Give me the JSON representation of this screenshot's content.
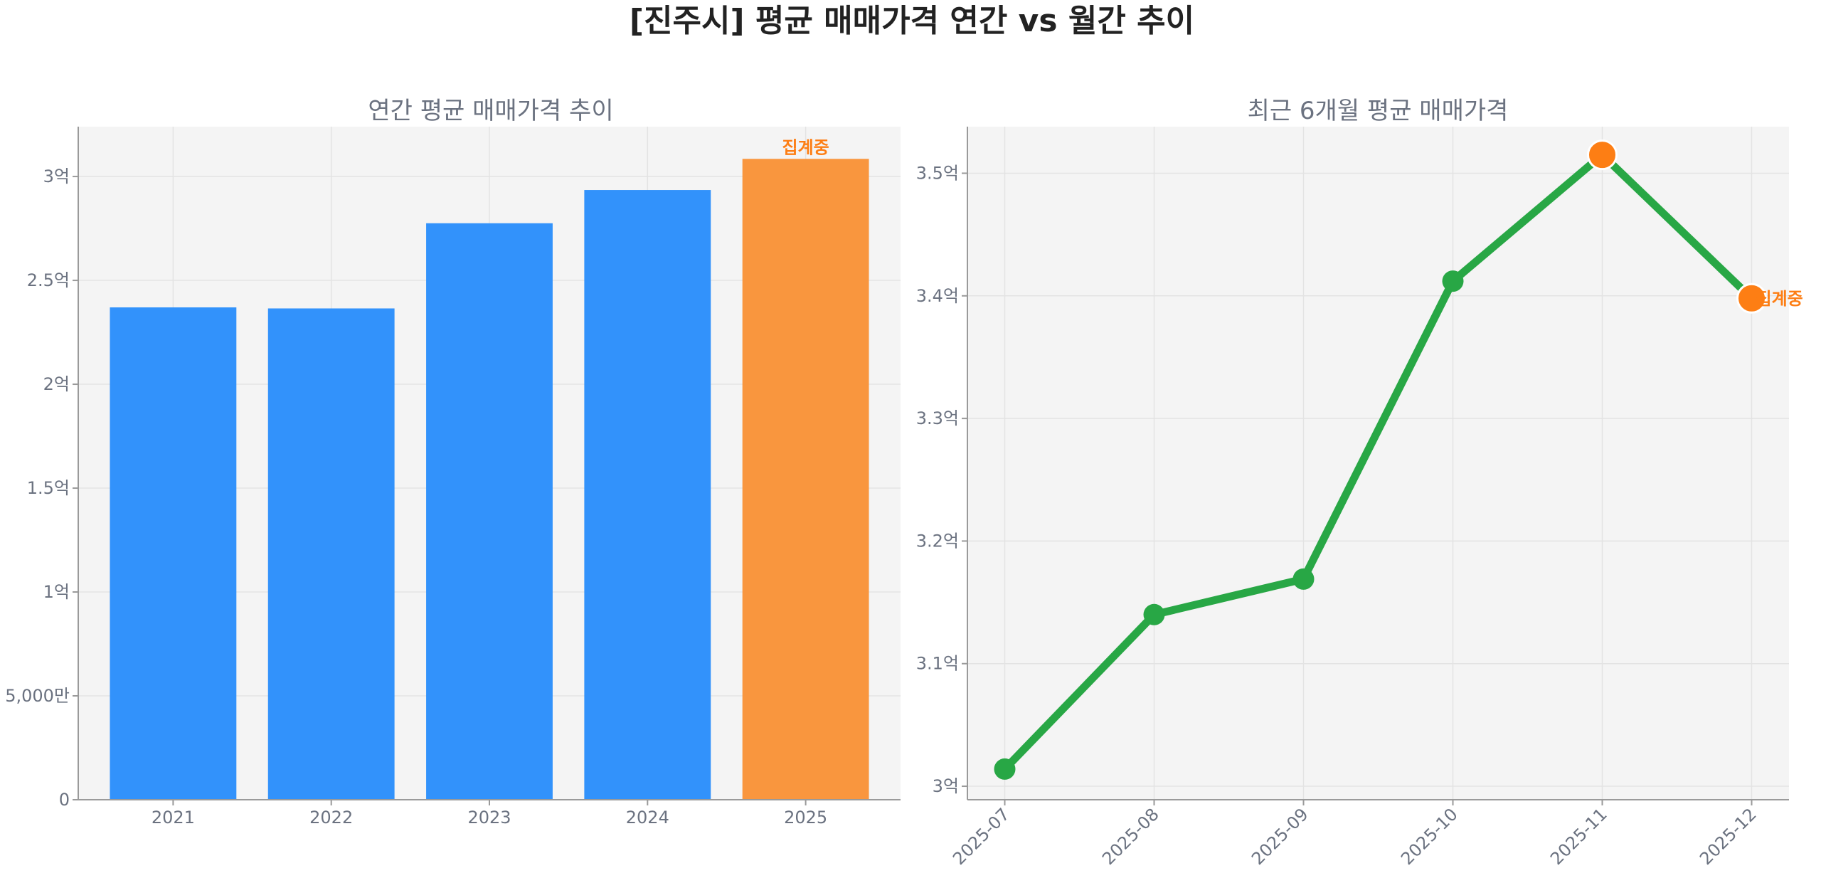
{
  "title": "[진주시] 평균 매매가격 연간 vs 월간 추이",
  "colors": {
    "bar": "#3292fb",
    "highlight_bar": "#f9963e",
    "line": "#28a745",
    "highlight_marker": "#fd7e14",
    "annotation": "#fd7e14"
  },
  "chart_data": [
    {
      "type": "bar",
      "title": "연간 평균 매매가격 추이",
      "categories": [
        "2021",
        "2022",
        "2023",
        "2024",
        "2025"
      ],
      "values": [
        237000000,
        236500000,
        277500000,
        293500000,
        308500000
      ],
      "highlight_index": 4,
      "annotation": "집계중",
      "ylim": [
        0,
        324000000
      ],
      "yticks": [
        0,
        50000000,
        100000000,
        150000000,
        200000000,
        250000000,
        300000000
      ],
      "ytick_labels": [
        "0",
        "5,000만",
        "1억",
        "1.5억",
        "2억",
        "2.5억",
        "3억"
      ],
      "grid": true
    },
    {
      "type": "line",
      "title": "최근 6개월 평균 매매가격",
      "categories": [
        "2025-07",
        "2025-08",
        "2025-09",
        "2025-10",
        "2025-11",
        "2025-12"
      ],
      "values": [
        301400000,
        314000000,
        316900000,
        341200000,
        351500000,
        339800000
      ],
      "highlight_indices": [
        4,
        5
      ],
      "annotation": "집계중",
      "annotation_index": 5,
      "ylim": [
        298900000,
        353800000
      ],
      "yticks": [
        300000000,
        310000000,
        320000000,
        330000000,
        340000000,
        350000000
      ],
      "ytick_labels": [
        "3억",
        "3.1억",
        "3.2억",
        "3.3억",
        "3.4억",
        "3.5억"
      ],
      "grid": true
    }
  ]
}
